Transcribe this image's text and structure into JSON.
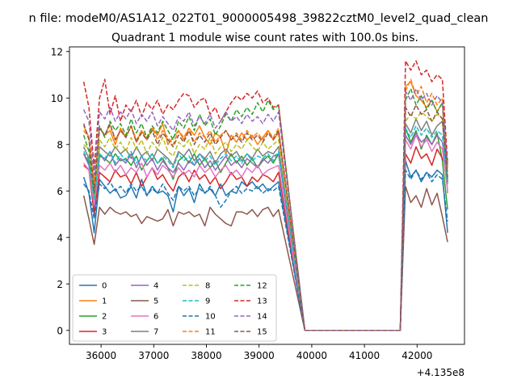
{
  "figure": {
    "suptitle": "n file: modeM0/AS1A12_022T01_9000005498_39822cztM0_level2_quad_clean",
    "title": "Quadrant 1 module wise count rates with 100.0s bins.",
    "offset_label": "+4.135e8"
  },
  "chart_data": {
    "type": "line",
    "title": "Quadrant 1 module wise count rates with 100.0s bins.",
    "xlabel": "",
    "ylabel": "",
    "x_offset": 413500000,
    "xlim": [
      35400,
      42900
    ],
    "ylim": [
      -0.6,
      12.2
    ],
    "x_ticks": [
      36000,
      37000,
      38000,
      39000,
      40000,
      41000,
      42000
    ],
    "y_ticks": [
      0,
      2,
      4,
      6,
      8,
      10,
      12
    ],
    "x_tick_labels": [
      "36000",
      "37000",
      "38000",
      "39000",
      "40000",
      "41000",
      "42000"
    ],
    "y_tick_labels": [
      "0",
      "2",
      "4",
      "6",
      "8",
      "10",
      "12"
    ],
    "grid": false,
    "legend_position": "lower-left",
    "legend_columns": 4,
    "segment_times": {
      "seg1_start": 35670,
      "seg1_step": 100,
      "seg1_count": 38,
      "gap_x": [
        39870,
        41680
      ],
      "seg2_start": 41780,
      "seg2_step": 100,
      "seg2_count": 9
    },
    "series": [
      {
        "name": "0",
        "color": "#1f77b4",
        "dash": "solid",
        "seg1": [
          6.6,
          5.9,
          4.2,
          6.5,
          6.2,
          5.9,
          6.1,
          5.7,
          5.8,
          6.2,
          5.7,
          6.5,
          5.8,
          6.2,
          5.9,
          6.0,
          5.8,
          5.1,
          6.2,
          5.8,
          6.1,
          5.5,
          6.3,
          5.9,
          6.1,
          5.8,
          6.3,
          5.8,
          6.0,
          5.9,
          6.4,
          6.2,
          6.4,
          6.1,
          6.3,
          6.0,
          6.2,
          6.4
        ],
        "seg2": [
          7.3,
          6.6,
          6.9,
          6.4,
          6.8,
          6.6,
          6.9,
          6.7,
          4.2
        ]
      },
      {
        "name": "1",
        "color": "#ff7f0e",
        "dash": "solid",
        "seg1": [
          8.8,
          8.3,
          6.2,
          8.7,
          8.4,
          8.6,
          8.0,
          8.7,
          8.3,
          8.8,
          8.1,
          8.6,
          8.2,
          8.7,
          8.4,
          8.9,
          8.0,
          8.3,
          8.6,
          8.2,
          8.7,
          8.4,
          8.8,
          8.3,
          8.0,
          8.5,
          8.3,
          7.6,
          8.4,
          8.1,
          8.5,
          8.2,
          8.4,
          8.0,
          8.3,
          8.6,
          8.2,
          8.5
        ],
        "seg2": [
          10.5,
          10.7,
          10.1,
          9.9,
          9.6,
          9.9,
          9.4,
          9.8,
          5.9
        ]
      },
      {
        "name": "2",
        "color": "#2ca02c",
        "dash": "solid",
        "seg1": [
          7.6,
          7.2,
          5.2,
          7.5,
          7.4,
          7.2,
          7.6,
          7.3,
          7.4,
          7.1,
          7.5,
          6.9,
          7.3,
          7.6,
          7.2,
          7.4,
          7.0,
          6.5,
          7.3,
          7.5,
          7.2,
          7.6,
          7.1,
          7.4,
          7.0,
          7.3,
          6.8,
          7.2,
          7.6,
          7.2,
          7.5,
          7.1,
          7.4,
          7.0,
          7.3,
          7.5,
          7.2,
          7.6
        ],
        "seg2": [
          8.7,
          8.1,
          8.6,
          7.8,
          8.4,
          8.0,
          8.5,
          7.3,
          5.2
        ]
      },
      {
        "name": "3",
        "color": "#d62728",
        "dash": "solid",
        "seg1": [
          7.1,
          6.9,
          5.0,
          6.8,
          6.6,
          6.4,
          6.9,
          6.6,
          6.7,
          6.3,
          6.8,
          6.2,
          6.6,
          7.0,
          6.5,
          6.7,
          6.3,
          6.0,
          6.6,
          6.8,
          6.4,
          6.9,
          6.5,
          6.7,
          6.3,
          6.6,
          6.1,
          6.4,
          6.8,
          6.5,
          6.6,
          6.2,
          6.6,
          6.4,
          6.7,
          6.6,
          6.4,
          6.8
        ],
        "seg2": [
          7.6,
          7.2,
          7.9,
          7.4,
          7.6,
          7.1,
          7.8,
          7.4,
          7.0
        ]
      },
      {
        "name": "4",
        "color": "#9467bd",
        "dash": "solid",
        "seg1": [
          7.6,
          7.1,
          5.3,
          7.6,
          7.3,
          7.7,
          7.1,
          7.4,
          7.2,
          7.6,
          7.0,
          7.5,
          7.1,
          7.4,
          6.9,
          7.3,
          7.0,
          6.8,
          7.2,
          6.9,
          7.3,
          7.1,
          7.4,
          7.0,
          7.3,
          6.9,
          7.2,
          7.5,
          7.1,
          7.3,
          7.0,
          7.4,
          7.2,
          7.0,
          7.4,
          7.2,
          7.5,
          7.6
        ],
        "seg2": [
          8.4,
          8.0,
          8.5,
          8.1,
          8.3,
          8.0,
          8.4,
          8.1,
          6.5
        ]
      },
      {
        "name": "5",
        "color": "#8c564b",
        "dash": "solid",
        "seg1": [
          5.8,
          4.8,
          3.7,
          5.3,
          5.0,
          5.3,
          5.1,
          5.0,
          5.1,
          4.9,
          5.0,
          4.6,
          4.9,
          4.8,
          4.7,
          4.8,
          5.2,
          4.5,
          5.1,
          5.0,
          5.1,
          4.9,
          5.0,
          4.5,
          5.3,
          5.0,
          4.8,
          4.6,
          4.5,
          5.1,
          5.1,
          5.0,
          5.2,
          4.9,
          5.2,
          5.3,
          4.9,
          5.2
        ],
        "seg2": [
          6.2,
          5.5,
          5.8,
          5.3,
          6.1,
          5.4,
          5.9,
          4.9,
          3.8
        ]
      },
      {
        "name": "6",
        "color": "#e377c2",
        "dash": "solid",
        "seg1": [
          7.2,
          6.9,
          5.4,
          7.1,
          6.9,
          7.2,
          6.8,
          7.1,
          6.7,
          7.0,
          6.8,
          7.2,
          6.6,
          7.0,
          6.7,
          7.1,
          6.9,
          6.6,
          7.0,
          6.7,
          6.9,
          6.6,
          7.1,
          6.8,
          7.0,
          6.6,
          6.9,
          7.1,
          6.7,
          6.9,
          6.6,
          7.0,
          6.8,
          7.1,
          6.7,
          6.9,
          7.0,
          7.1
        ],
        "seg2": [
          8.2,
          7.8,
          8.4,
          7.9,
          8.2,
          7.7,
          8.1,
          7.8,
          6.0
        ]
      },
      {
        "name": "7",
        "color": "#7f7f7f",
        "dash": "solid",
        "seg1": [
          7.9,
          7.4,
          5.7,
          7.9,
          7.7,
          7.5,
          7.9,
          7.6,
          7.8,
          7.4,
          7.9,
          7.5,
          7.7,
          7.3,
          7.8,
          7.6,
          7.4,
          7.1,
          7.7,
          7.5,
          7.8,
          7.3,
          7.6,
          7.4,
          7.7,
          7.2,
          7.6,
          7.8,
          7.5,
          7.7,
          7.3,
          7.6,
          7.4,
          7.8,
          7.5,
          7.7,
          7.6,
          7.9
        ],
        "seg2": [
          8.9,
          8.5,
          9.1,
          8.6,
          9.0,
          8.4,
          8.8,
          9.0,
          6.4
        ]
      },
      {
        "name": "8",
        "color": "#bcbd22",
        "dash": "dashed",
        "seg1": [
          8.0,
          7.8,
          5.8,
          8.2,
          7.9,
          8.3,
          7.8,
          8.1,
          7.7,
          8.3,
          7.8,
          8.2,
          7.6,
          8.1,
          7.8,
          8.3,
          7.7,
          7.5,
          8.1,
          7.9,
          8.2,
          7.6,
          8.0,
          7.8,
          8.3,
          7.6,
          7.9,
          8.1,
          7.7,
          8.0,
          7.8,
          8.2,
          7.9,
          7.7,
          8.1,
          7.8,
          8.0,
          8.2
        ],
        "seg2": [
          9.0,
          9.3,
          9.1,
          9.4,
          9.2,
          9.0,
          9.3,
          9.1,
          6.8
        ]
      },
      {
        "name": "9",
        "color": "#17becf",
        "dash": "dashed",
        "seg1": [
          7.7,
          7.3,
          5.6,
          7.6,
          7.4,
          7.7,
          7.2,
          7.6,
          7.3,
          7.7,
          7.2,
          7.5,
          7.3,
          7.6,
          7.2,
          7.5,
          7.3,
          7.0,
          7.6,
          7.3,
          7.5,
          7.1,
          7.6,
          7.3,
          7.5,
          7.1,
          7.4,
          7.6,
          7.3,
          7.5,
          7.2,
          7.6,
          7.3,
          7.5,
          7.4,
          7.6,
          7.3,
          7.7
        ],
        "seg2": [
          8.7,
          8.3,
          8.8,
          8.4,
          8.7,
          8.3,
          8.6,
          8.4,
          6.3
        ]
      },
      {
        "name": "10",
        "color": "#1f77b4",
        "dash": "dashed",
        "seg1": [
          6.3,
          6.0,
          4.8,
          6.3,
          6.1,
          6.4,
          6.0,
          6.2,
          5.9,
          6.3,
          6.0,
          6.2,
          5.8,
          6.1,
          5.9,
          6.3,
          5.9,
          5.6,
          6.2,
          6.0,
          6.2,
          5.8,
          6.1,
          5.9,
          6.2,
          5.8,
          5.3,
          5.6,
          6.0,
          6.2,
          5.9,
          6.1,
          6.0,
          6.2,
          5.9,
          6.1,
          6.0,
          6.2
        ],
        "seg2": [
          6.9,
          6.5,
          6.9,
          6.5,
          6.8,
          6.4,
          6.7,
          6.5,
          4.7
        ]
      },
      {
        "name": "11",
        "color": "#ff7f0e",
        "dash": "dashed",
        "seg1": [
          8.6,
          8.3,
          6.4,
          8.7,
          8.4,
          8.8,
          8.2,
          8.6,
          8.3,
          8.8,
          8.2,
          8.6,
          8.3,
          8.7,
          8.2,
          8.6,
          8.3,
          8.0,
          8.6,
          8.3,
          8.7,
          8.1,
          8.5,
          8.3,
          8.6,
          8.1,
          8.4,
          8.6,
          8.2,
          8.5,
          8.2,
          8.6,
          8.3,
          8.5,
          8.2,
          8.6,
          8.3,
          8.7
        ],
        "seg2": [
          10.3,
          10.8,
          10.1,
          10.5,
          9.8,
          10.2,
          9.7,
          10.0,
          7.0
        ]
      },
      {
        "name": "12",
        "color": "#2ca02c",
        "dash": "dashed",
        "seg1": [
          8.4,
          7.7,
          5.9,
          8.8,
          8.3,
          9.0,
          8.6,
          8.9,
          8.4,
          9.1,
          8.5,
          8.9,
          8.3,
          8.8,
          8.5,
          9.0,
          8.6,
          8.2,
          9.0,
          8.7,
          9.2,
          8.6,
          9.3,
          8.8,
          9.1,
          8.4,
          8.8,
          9.3,
          9.0,
          9.5,
          9.2,
          9.6,
          9.3,
          9.8,
          9.4,
          9.9,
          9.5,
          9.7
        ],
        "seg2": [
          9.9,
          10.4,
          9.7,
          10.1,
          9.5,
          9.9,
          9.4,
          9.8,
          6.4
        ]
      },
      {
        "name": "13",
        "color": "#d62728",
        "dash": "dashed",
        "seg1": [
          10.7,
          9.6,
          7.0,
          10.0,
          10.8,
          9.3,
          10.1,
          9.0,
          9.7,
          9.4,
          9.9,
          9.2,
          9.8,
          9.5,
          9.9,
          9.3,
          9.7,
          9.5,
          9.9,
          10.2,
          10.1,
          9.6,
          9.9,
          10.0,
          9.3,
          9.6,
          9.0,
          9.4,
          9.8,
          10.1,
          9.9,
          10.2,
          10.0,
          10.3,
          9.8,
          10.0,
          9.6,
          9.7
        ],
        "seg2": [
          11.6,
          11.2,
          11.6,
          11.0,
          11.2,
          10.7,
          11.0,
          10.8,
          7.2
        ]
      },
      {
        "name": "14",
        "color": "#9467bd",
        "dash": "dashed",
        "seg1": [
          9.5,
          9.0,
          6.7,
          9.4,
          9.1,
          9.6,
          9.0,
          9.4,
          9.1,
          9.5,
          8.9,
          9.3,
          9.0,
          9.4,
          8.8,
          9.2,
          8.9,
          8.6,
          9.2,
          9.0,
          9.4,
          8.8,
          9.2,
          8.9,
          9.3,
          8.7,
          9.0,
          9.4,
          9.0,
          9.2,
          8.9,
          9.3,
          9.0,
          9.2,
          8.9,
          9.3,
          9.0,
          9.4
        ],
        "seg2": [
          10.3,
          9.9,
          10.4,
          9.9,
          10.2,
          9.7,
          10.1,
          9.8,
          7.1
        ]
      },
      {
        "name": "15",
        "color": "#8c564b",
        "dash": "dashed",
        "seg1": [
          8.9,
          8.2,
          6.0,
          8.7,
          8.4,
          8.9,
          8.2,
          8.6,
          8.3,
          8.8,
          8.1,
          8.5,
          8.2,
          8.6,
          8.0,
          8.5,
          8.2,
          7.9,
          8.4,
          8.1,
          8.6,
          8.0,
          8.4,
          8.1,
          8.5,
          8.0,
          8.3,
          8.6,
          8.2,
          8.4,
          8.1,
          8.5,
          8.2,
          8.4,
          8.1,
          8.5,
          8.2,
          8.6
        ],
        "seg2": [
          9.6,
          9.2,
          9.7,
          9.3,
          9.5,
          9.0,
          9.4,
          9.1,
          6.6
        ]
      }
    ]
  }
}
